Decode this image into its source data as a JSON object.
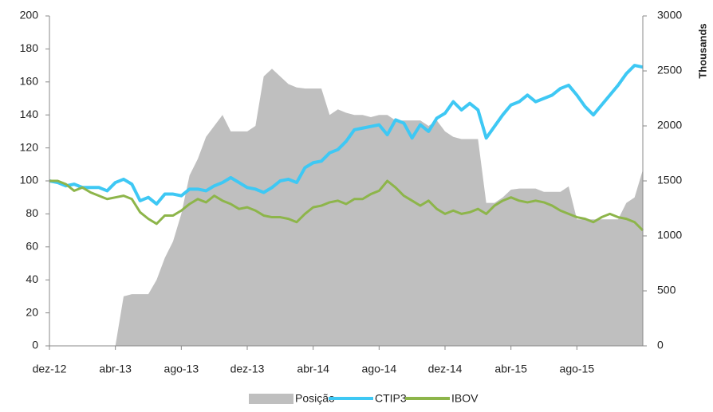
{
  "chart_data": {
    "type": "line_area",
    "y2_label": "Thousands",
    "x": [
      0,
      0.5,
      1,
      1.5,
      2,
      2.5,
      3,
      3.5,
      4,
      4.5,
      5,
      5.5,
      6,
      6.5,
      7,
      7.5,
      8,
      8.5,
      9,
      9.5,
      10,
      10.5,
      11,
      11.5,
      12,
      12.5,
      13,
      13.5,
      14,
      14.5,
      15,
      15.5,
      16,
      16.5,
      17,
      17.5,
      18,
      18.5,
      19,
      19.5,
      20,
      20.5,
      21,
      21.5,
      22,
      22.5,
      23,
      23.5,
      24,
      24.5,
      25,
      25.5,
      26,
      26.5,
      27,
      27.5,
      28,
      28.5,
      29,
      29.5,
      30,
      30.5,
      31,
      31.5,
      32,
      32.5,
      33,
      33.5,
      34,
      34.5,
      35,
      35.5,
      36
    ],
    "xlim": [
      0,
      36
    ],
    "xticks": [
      {
        "value": 0,
        "label": "dez-12"
      },
      {
        "value": 4,
        "label": "abr-13"
      },
      {
        "value": 8,
        "label": "ago-13"
      },
      {
        "value": 12,
        "label": "dez-13"
      },
      {
        "value": 16,
        "label": "abr-14"
      },
      {
        "value": 20,
        "label": "ago-14"
      },
      {
        "value": 24,
        "label": "dez-14"
      },
      {
        "value": 28,
        "label": "abr-15"
      },
      {
        "value": 32,
        "label": "ago-15"
      }
    ],
    "ylim": [
      0,
      200
    ],
    "yticks": [
      0,
      20,
      40,
      60,
      80,
      100,
      120,
      140,
      160,
      180,
      200
    ],
    "y2lim": [
      0,
      3000
    ],
    "y2ticks": [
      0,
      500,
      1000,
      1500,
      2000,
      2500,
      3000
    ],
    "series": [
      {
        "name": "Posição",
        "color": "#bfbfbf",
        "kind": "area",
        "axis": "y2",
        "values": [
          0,
          0,
          0,
          0,
          0,
          0,
          0,
          0,
          0,
          450,
          470,
          470,
          470,
          600,
          800,
          950,
          1200,
          1550,
          1700,
          1900,
          2000,
          2100,
          1950,
          1950,
          1950,
          2000,
          2450,
          2520,
          2450,
          2380,
          2350,
          2340,
          2340,
          2340,
          2100,
          2150,
          2120,
          2100,
          2100,
          2080,
          2100,
          2100,
          2050,
          2050,
          2050,
          2050,
          2000,
          2050,
          1950,
          1900,
          1880,
          1880,
          1880,
          1300,
          1300,
          1350,
          1420,
          1430,
          1430,
          1430,
          1400,
          1400,
          1400,
          1450,
          1150,
          1150,
          1150,
          1150,
          1150,
          1150,
          1300,
          1350,
          1600
        ]
      },
      {
        "name": "CTIP3",
        "color": "#3ec8f4",
        "kind": "line",
        "values": [
          100,
          99,
          97,
          98,
          96,
          96,
          96,
          94,
          99,
          101,
          98,
          88,
          90,
          86,
          92,
          92,
          91,
          95,
          95,
          94,
          97,
          99,
          102,
          99,
          96,
          95,
          93,
          96,
          100,
          101,
          99,
          108,
          111,
          112,
          117,
          119,
          124,
          131,
          132,
          133,
          134,
          128,
          137,
          135,
          126,
          134,
          130,
          138,
          141,
          148,
          143,
          147,
          143,
          126,
          133,
          140,
          146,
          148,
          152,
          148,
          150,
          152,
          156,
          158,
          152,
          145,
          140,
          146,
          152,
          158,
          165,
          170,
          169
        ]
      },
      {
        "name": "IBOV",
        "color": "#8db54a",
        "kind": "line",
        "values": [
          100,
          100,
          98,
          94,
          96,
          93,
          91,
          89,
          90,
          91,
          89,
          81,
          77,
          74,
          79,
          79,
          82,
          86,
          89,
          87,
          91,
          88,
          86,
          83,
          84,
          82,
          79,
          78,
          78,
          77,
          75,
          80,
          84,
          85,
          87,
          88,
          86,
          89,
          89,
          92,
          94,
          100,
          96,
          91,
          88,
          85,
          88,
          83,
          80,
          82,
          80,
          81,
          83,
          80,
          85,
          88,
          90,
          88,
          87,
          88,
          87,
          85,
          82,
          80,
          78,
          77,
          75,
          78,
          80,
          78,
          77,
          75,
          70
        ]
      }
    ]
  }
}
